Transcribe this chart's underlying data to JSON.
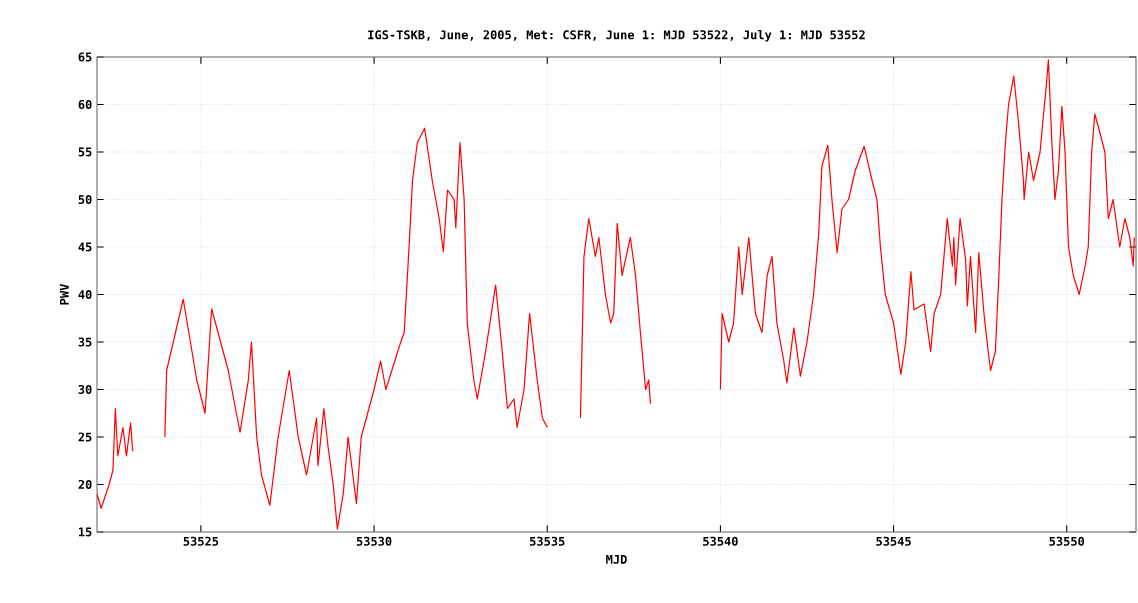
{
  "chart_data": {
    "type": "line",
    "title": "IGS-TSKB, June, 2005, Met: CSFR, June 1: MJD 53522, July 1: MJD 53552",
    "xlabel": "MJD",
    "ylabel": "PWV",
    "xlim": [
      53522,
      53552
    ],
    "xticks": [
      53525,
      53530,
      53535,
      53540,
      53545,
      53550
    ],
    "ylim": [
      15,
      65
    ],
    "yticks": [
      15,
      20,
      25,
      30,
      35,
      40,
      45,
      50,
      55,
      60,
      65
    ],
    "grid": true,
    "series": [
      {
        "color": "#ff0000",
        "x": [
          53522.0,
          53522.12,
          53522.35,
          53522.46,
          53522.53,
          53522.6,
          53522.75,
          53522.85,
          53522.97,
          53523.03,
          53523.5,
          53523.96,
          53524.01,
          53524.49,
          53524.88,
          53525.12,
          53525.31,
          53525.79,
          53526.13,
          53526.37,
          53526.46,
          53526.61,
          53526.75,
          53526.99,
          53527.23,
          53527.55,
          53527.81,
          53528.05,
          53528.34,
          53528.38,
          53528.55,
          53528.67,
          53528.82,
          53528.94,
          53529.11,
          53529.25,
          53529.49,
          53529.63,
          53530.0,
          53530.19,
          53530.34,
          53530.77,
          53530.87,
          53531.01,
          53531.11,
          53531.25,
          53531.46,
          53531.68,
          53531.88,
          53532.0,
          53532.12,
          53532.31,
          53532.36,
          53532.48,
          53532.6,
          53532.69,
          53532.88,
          53532.98,
          53533.22,
          53533.51,
          53533.7,
          53533.85,
          53534.04,
          53534.13,
          53534.33,
          53534.49,
          53534.71,
          53534.86,
          53535.0,
          53535.5,
          53535.96,
          53536.06,
          53536.2,
          53536.39,
          53536.49,
          53536.68,
          53536.83,
          53536.92,
          53537.02,
          53537.16,
          53537.4,
          53537.55,
          53537.69,
          53537.84,
          53537.93,
          53537.98,
          53539.0,
          53540.0,
          53540.05,
          53540.24,
          53540.38,
          53540.53,
          53540.63,
          53540.82,
          53541.01,
          53541.2,
          53541.35,
          53541.49,
          53541.63,
          53541.83,
          53541.92,
          53542.12,
          53542.31,
          53542.5,
          53542.69,
          53542.84,
          53542.93,
          53543.1,
          53543.22,
          53543.37,
          53543.51,
          53543.7,
          53543.89,
          53544.15,
          53544.38,
          53544.52,
          53544.62,
          53544.76,
          53545.0,
          53545.21,
          53545.35,
          53545.5,
          53545.59,
          53545.88,
          53546.07,
          53546.17,
          53546.36,
          53546.55,
          53546.7,
          53546.74,
          53546.79,
          53546.92,
          53547.08,
          53547.13,
          53547.22,
          53547.37,
          53547.46,
          53547.61,
          53547.7,
          53547.8,
          53547.94,
          53548.04,
          53548.13,
          53548.23,
          53548.32,
          53548.47,
          53548.61,
          53548.75,
          53548.77,
          53548.9,
          53549.04,
          53549.23,
          53549.33,
          53549.41,
          53549.47,
          53549.57,
          53549.66,
          53549.76,
          53549.86,
          53549.95,
          53550.05,
          53550.19,
          53550.36,
          53550.53,
          53550.62,
          53550.72,
          53550.81,
          53550.96,
          53551.1,
          53551.2,
          53551.34,
          53551.53,
          53551.68,
          53551.82,
          53551.92,
          53551.95
        ],
        "values": [
          19,
          17.5,
          20,
          21.5,
          28,
          23,
          26,
          23,
          26.5,
          23.5,
          null,
          25,
          32,
          39.5,
          31,
          27.5,
          38.5,
          32,
          25.5,
          31,
          35,
          25,
          21,
          17.8,
          25,
          32,
          25,
          21,
          27,
          22,
          28,
          24,
          20,
          15.3,
          19,
          25,
          18,
          25,
          30,
          33,
          30,
          35,
          36,
          45,
          52,
          56,
          57.5,
          52,
          48,
          44.5,
          51,
          50,
          47,
          56,
          50,
          37,
          31,
          29,
          34,
          41,
          34,
          28,
          29,
          26,
          30,
          38,
          31,
          27,
          26,
          null,
          27,
          44,
          48,
          44,
          46,
          40,
          37,
          38,
          47.5,
          42,
          46,
          42,
          36,
          30,
          31,
          28.5,
          null,
          30,
          38,
          35,
          37,
          45,
          40,
          46,
          38,
          36,
          42,
          44,
          37,
          33,
          30.7,
          36.5,
          31.4,
          35,
          40,
          46.5,
          53.5,
          55.7,
          50,
          44.4,
          49,
          50,
          53,
          55.6,
          52,
          50,
          45,
          40,
          37,
          31.6,
          35,
          42.4,
          38.4,
          39,
          34,
          38,
          40,
          48,
          43,
          46,
          41,
          48,
          43.7,
          38.8,
          44,
          36,
          44.4,
          38,
          35,
          32,
          34,
          42,
          50,
          56,
          60,
          63,
          58,
          52,
          50,
          55,
          52,
          55,
          59,
          62,
          64.7,
          56,
          50,
          53,
          59.8,
          55,
          45,
          42,
          40,
          43,
          45,
          55,
          59,
          57,
          55,
          48,
          50,
          45,
          48,
          46,
          43,
          46
        ]
      }
    ]
  }
}
